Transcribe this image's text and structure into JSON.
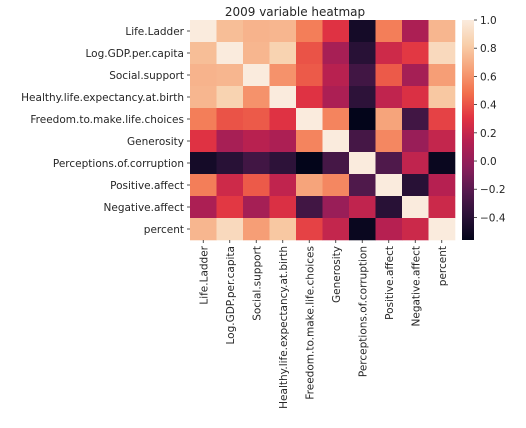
{
  "chart_data": {
    "type": "heatmap",
    "title": "2009 variable heatmap",
    "variables": [
      "Life.Ladder",
      "Log.GDP.per.capita",
      "Social.support",
      "Healthy.life.expectancy.at.birth",
      "Freedom.to.make.life.choices",
      "Generosity",
      "Perceptions.of.corruption",
      "Positive.affect",
      "Negative.affect",
      "percent"
    ],
    "matrix": [
      [
        1.0,
        0.76,
        0.72,
        0.73,
        0.53,
        0.3,
        -0.48,
        0.53,
        0.1,
        0.73
      ],
      [
        0.76,
        1.0,
        0.73,
        0.85,
        0.4,
        0.08,
        -0.4,
        0.23,
        0.32,
        0.89
      ],
      [
        0.72,
        0.73,
        1.0,
        0.6,
        0.42,
        0.15,
        -0.3,
        0.42,
        0.07,
        0.64
      ],
      [
        0.73,
        0.85,
        0.6,
        1.0,
        0.3,
        0.1,
        -0.38,
        0.18,
        0.28,
        0.8
      ],
      [
        0.53,
        0.4,
        0.42,
        0.3,
        1.0,
        0.55,
        -0.56,
        0.66,
        -0.3,
        0.35
      ],
      [
        0.3,
        0.08,
        0.15,
        0.1,
        0.55,
        1.0,
        -0.28,
        0.56,
        0.02,
        0.19
      ],
      [
        -0.48,
        -0.4,
        -0.3,
        -0.38,
        -0.56,
        -0.28,
        1.0,
        -0.24,
        0.18,
        -0.53
      ],
      [
        0.53,
        0.23,
        0.42,
        0.18,
        0.66,
        0.56,
        -0.24,
        1.0,
        -0.4,
        0.14
      ],
      [
        0.1,
        0.32,
        0.07,
        0.28,
        -0.3,
        0.02,
        0.18,
        -0.4,
        1.0,
        0.22
      ],
      [
        0.73,
        0.89,
        0.64,
        0.8,
        0.35,
        0.19,
        -0.53,
        0.14,
        0.22,
        1.0
      ]
    ],
    "colorbar": {
      "min": -0.56,
      "max": 1.0,
      "ticks": [
        1.0,
        0.8,
        0.6,
        0.4,
        0.2,
        0.0,
        -0.2,
        -0.4
      ],
      "tick_labels": [
        "1.0",
        "0.8",
        "0.6",
        "0.4",
        "0.2",
        "0.0",
        "−0.2",
        "−0.4"
      ]
    },
    "colormap": "rocket",
    "colormap_stops": [
      "#03051a",
      "#2b1238",
      "#561a4f",
      "#8a1e5b",
      "#b41f52",
      "#e13342",
      "#f26f4c",
      "#f6a279",
      "#f8cfaa",
      "#faebdd"
    ]
  }
}
